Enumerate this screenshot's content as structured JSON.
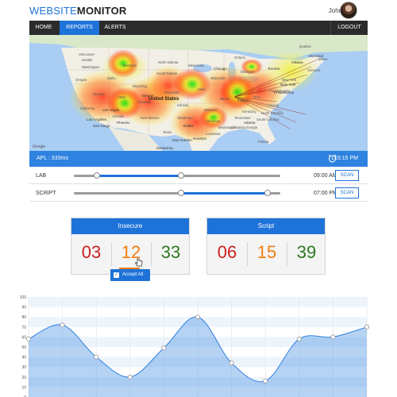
{
  "header": {
    "logo_part1": "WEBSITE",
    "logo_part2": "MONITOR",
    "user_name": "John Doe"
  },
  "nav": {
    "items": [
      {
        "label": "HOME"
      },
      {
        "label": "REPORTS"
      },
      {
        "label": "ALERTS"
      }
    ],
    "active": "REPORTS",
    "logout": "LOGOUT"
  },
  "map": {
    "country": "United States",
    "states": [
      "Washington",
      "Montana",
      "North Dakota",
      "Minnesota",
      "Oregon",
      "Idaho",
      "South Dakota",
      "Wisconsin",
      "Michigan",
      "Wyoming",
      "Nebraska",
      "Iowa",
      "Illinois",
      "Indiana",
      "Ohio",
      "Nevada",
      "Utah",
      "Colorado",
      "Kansas",
      "Missouri",
      "Kentucky",
      "California",
      "Arizona",
      "New Mexico",
      "Oklahoma",
      "Arkansas",
      "Tennessee",
      "Texas",
      "Louisiana",
      "Mississippi",
      "Alabama",
      "Georgia",
      "Florida",
      "South Carolina",
      "North Carolina",
      "Virginia",
      "Pennsylvania",
      "New York",
      "Vermont",
      "Maine",
      "Ontario",
      "Quebec"
    ],
    "cities": [
      "Vancouver",
      "Seattle",
      "Portland",
      "Chicago",
      "Denver",
      "Los Angeles",
      "San Diego",
      "Phoenix",
      "Las Vegas",
      "Dallas",
      "Houston",
      "San Antonio",
      "Atlanta",
      "Monterrey",
      "Toronto",
      "Ottawa",
      "Montreal",
      "New York",
      "Philadelphia"
    ],
    "attribution": "Google"
  },
  "status_bar": {
    "apl": "APL : 333ms",
    "time": "15:15 PM",
    "clock_icon": "alarm-clock-icon"
  },
  "sliders": [
    {
      "label": "LAB",
      "time": "09:00 AM",
      "scan": "SCAN",
      "range": [
        0.11,
        0.52
      ]
    },
    {
      "label": "SCRIPT",
      "time": "07:00 PM",
      "scan": "SCAN",
      "range": [
        0.52,
        0.94
      ]
    }
  ],
  "cards": [
    {
      "title": "Insecure",
      "values": [
        "03",
        "12",
        "33"
      ],
      "colors": [
        "#cc1f1f",
        "#f07c12",
        "#2b7a1e"
      ]
    },
    {
      "title": "Script",
      "values": [
        "06",
        "15",
        "39"
      ],
      "colors": [
        "#cc1f1f",
        "#f07c12",
        "#2b7a1e"
      ]
    }
  ],
  "accept_all": {
    "label": "Accept All",
    "checked": true
  },
  "chart_data": {
    "type": "area",
    "y_ticks": [
      "0",
      "10",
      "20",
      "30",
      "40",
      "50",
      "60",
      "70",
      "80",
      "90",
      "100"
    ],
    "ylim": [
      0,
      100
    ],
    "x": [
      0,
      1,
      2,
      3,
      4,
      5,
      6,
      7,
      8,
      9,
      10
    ],
    "values": [
      58,
      72,
      40,
      20,
      49,
      80,
      34,
      16,
      58,
      60,
      70
    ],
    "color": "#2e82e0",
    "grid": true
  }
}
